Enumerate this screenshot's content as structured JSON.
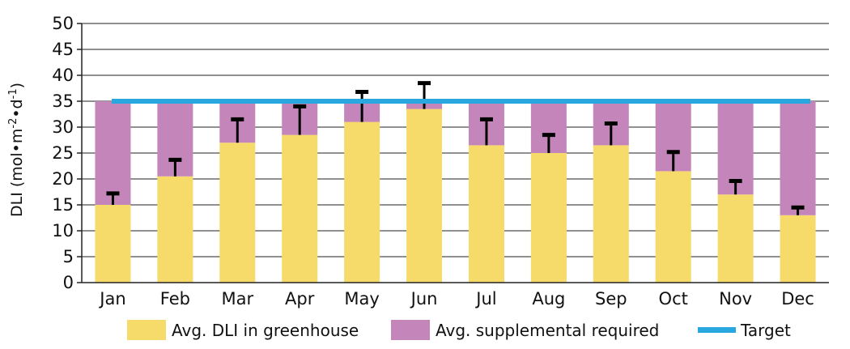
{
  "chart_data": {
    "type": "bar",
    "stacked": true,
    "categories": [
      "Jan",
      "Feb",
      "Mar",
      "Apr",
      "May",
      "Jun",
      "Jul",
      "Aug",
      "Sep",
      "Oct",
      "Nov",
      "Dec"
    ],
    "series": [
      {
        "name": "Avg. DLI in greenhouse",
        "color": "#F6DA6A",
        "values": [
          15,
          20.5,
          27,
          28.5,
          31,
          33.5,
          26.5,
          25,
          26.5,
          21.5,
          17,
          13
        ],
        "error_upper": [
          2.2,
          3.2,
          4.5,
          5.5,
          5.8,
          5,
          5,
          3.5,
          4.2,
          3.7,
          2.6,
          1.5
        ]
      },
      {
        "name": "Avg. supplemental required",
        "color": "#C486BA",
        "values": [
          20,
          14.5,
          8,
          6.5,
          4,
          1.5,
          8.5,
          10,
          8.5,
          13.5,
          18,
          22
        ]
      }
    ],
    "target": {
      "name": "Target",
      "value": 35,
      "color": "#29A8E0"
    },
    "ylabel": "DLI (mol•m-2•d-1)",
    "ylabel_parts": {
      "base": "DLI (mol•m",
      "sup1": "-2",
      "mid": "•d",
      "sup2": "-1",
      "end": ")"
    },
    "ylim": [
      0,
      50
    ],
    "yticks": [
      0,
      5,
      10,
      15,
      20,
      25,
      30,
      35,
      40,
      45,
      50
    ],
    "grid": true,
    "legend_position": "bottom"
  }
}
